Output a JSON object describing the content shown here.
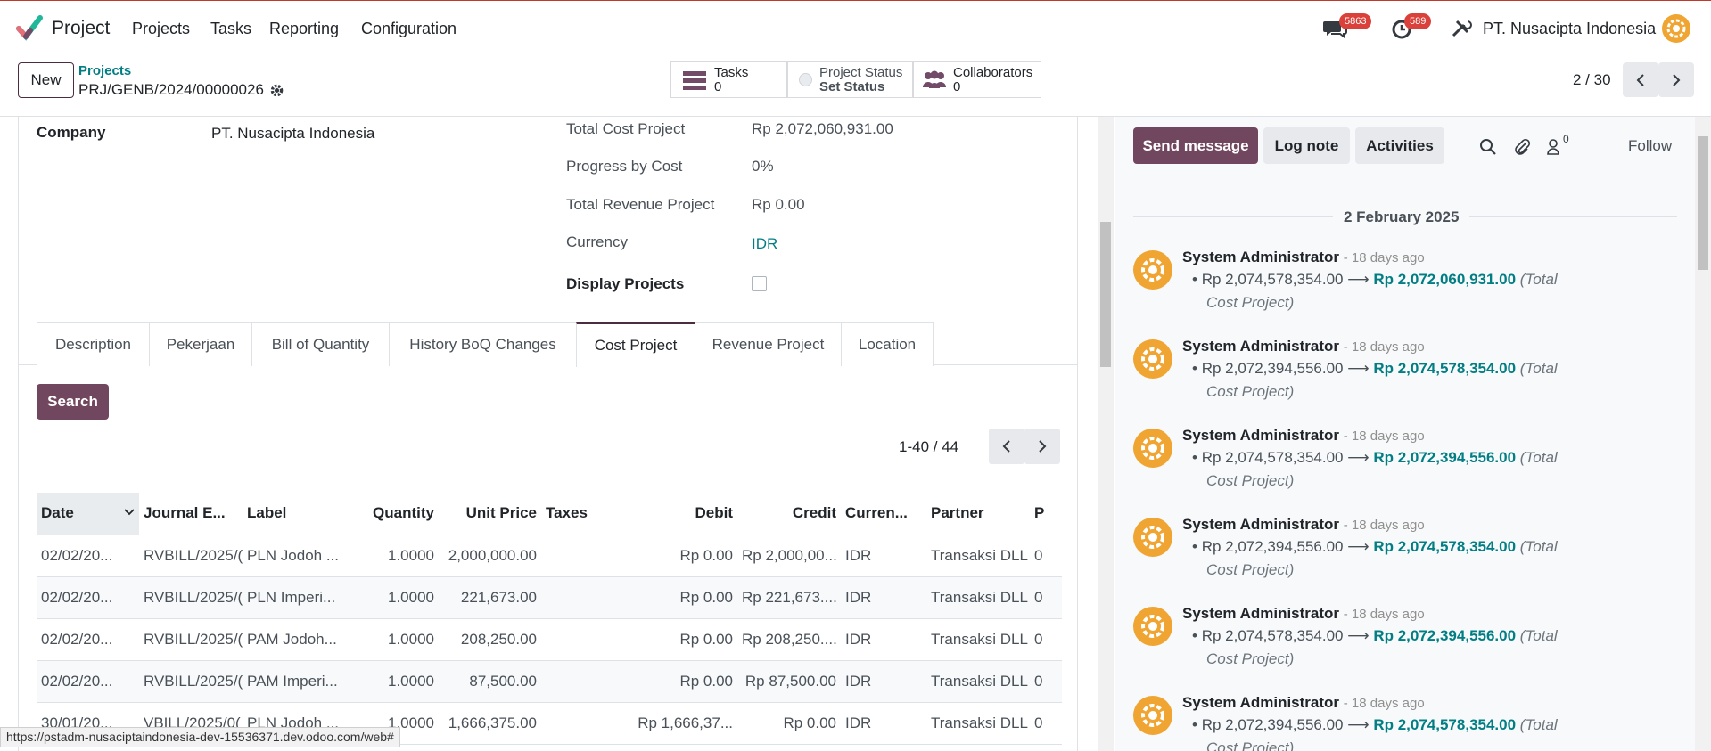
{
  "navbar": {
    "app_name": "Project",
    "menu": [
      "Projects",
      "Tasks",
      "Reporting",
      "Configuration"
    ],
    "messages_badge": "5863",
    "activities_badge": "589",
    "company": "PT. Nusacipta Indonesia"
  },
  "control": {
    "new_label": "New",
    "breadcrumb_parent": "Projects",
    "breadcrumb_current": "PRJ/GENB/2024/00000026",
    "smart_buttons": {
      "tasks_label": "Tasks",
      "tasks_count": "0",
      "status_label": "Project Status",
      "status_value": "Set Status",
      "collab_label": "Collaborators",
      "collab_count": "0"
    },
    "pager": "2 / 30"
  },
  "form": {
    "company_label": "Company",
    "company_value": "PT. Nusacipta Indonesia",
    "total_cost_label": "Total Cost Project",
    "total_cost_value": "Rp 2,072,060,931.00",
    "progress_label": "Progress by Cost",
    "progress_value": "0%",
    "total_revenue_label": "Total Revenue Project",
    "total_revenue_value": "Rp 0.00",
    "currency_label": "Currency",
    "currency_value": "IDR",
    "display_projects_label": "Display Projects"
  },
  "tabs": [
    "Description",
    "Pekerjaan",
    "Bill of Quantity",
    "History BoQ Changes",
    "Cost Project",
    "Revenue Project",
    "Location"
  ],
  "active_tab": "Cost Project",
  "cost_table": {
    "search_label": "Search",
    "pager": "1-40 / 44",
    "columns": [
      "Date",
      "Journal E...",
      "Label",
      "Quantity",
      "Unit Price",
      "Taxes",
      "Debit",
      "Credit",
      "Curren...",
      "Partner",
      "P"
    ],
    "rows": [
      [
        "02/02/20...",
        "RVBILL/2025/(",
        "PLN Jodoh ...",
        "1.0000",
        "2,000,000.00",
        "",
        "Rp 0.00",
        "Rp 2,000,00...",
        "IDR",
        "Transaksi DLL",
        "0"
      ],
      [
        "02/02/20...",
        "RVBILL/2025/(",
        "PLN Imperi...",
        "1.0000",
        "221,673.00",
        "",
        "Rp 0.00",
        "Rp 221,673....",
        "IDR",
        "Transaksi DLL",
        "0"
      ],
      [
        "02/02/20...",
        "RVBILL/2025/(",
        "PAM Jodoh...",
        "1.0000",
        "208,250.00",
        "",
        "Rp 0.00",
        "Rp 208,250....",
        "IDR",
        "Transaksi DLL",
        "0"
      ],
      [
        "02/02/20...",
        "RVBILL/2025/(",
        "PAM Imperi...",
        "1.0000",
        "87,500.00",
        "",
        "Rp 0.00",
        "Rp 87,500.00",
        "IDR",
        "Transaksi DLL",
        "0"
      ],
      [
        "30/01/20...",
        "VBILL/2025/0(",
        "PLN Jodoh ...",
        "1.0000",
        "1,666,375.00",
        "",
        "Rp 1,666,37...",
        "Rp 0.00",
        "IDR",
        "Transaksi DLL",
        "0"
      ]
    ]
  },
  "status_url": "https://pstadm-nusaciptaindonesia-dev-15536371.dev.odoo.com/web#",
  "chatter": {
    "send_label": "Send message",
    "log_label": "Log note",
    "activities_label": "Activities",
    "followers_count": "0",
    "follow_label": "Follow",
    "date_separator": "2 February 2025",
    "messages": [
      {
        "author": "System Administrator",
        "time": "- 18 days ago",
        "old": "Rp 2,074,578,354.00",
        "new": "Rp 2,072,060,931.00",
        "field_a": "(Total",
        "field_b": "Cost Project)"
      },
      {
        "author": "System Administrator",
        "time": "- 18 days ago",
        "old": "Rp 2,072,394,556.00",
        "new": "Rp 2,074,578,354.00",
        "field_a": "(Total",
        "field_b": "Cost Project)"
      },
      {
        "author": "System Administrator",
        "time": "- 18 days ago",
        "old": "Rp 2,074,578,354.00",
        "new": "Rp 2,072,394,556.00",
        "field_a": "(Total",
        "field_b": "Cost Project)"
      },
      {
        "author": "System Administrator",
        "time": "- 18 days ago",
        "old": "Rp 2,072,394,556.00",
        "new": "Rp 2,074,578,354.00",
        "field_a": "(Total",
        "field_b": "Cost Project)"
      },
      {
        "author": "System Administrator",
        "time": "- 18 days ago",
        "old": "Rp 2,074,578,354.00",
        "new": "Rp 2,072,394,556.00",
        "field_a": "(Total",
        "field_b": "Cost Project)"
      },
      {
        "author": "System Administrator",
        "time": "- 18 days ago",
        "old": "Rp 2,072,394,556.00",
        "new": "Rp 2,074,578,354.00",
        "field_a": "(Total",
        "field_b": "Cost Project)"
      }
    ]
  },
  "colors": {
    "brand": "#71465f",
    "link": "#017e84",
    "badge": "#d9413a",
    "avatar": "#f0a431"
  }
}
